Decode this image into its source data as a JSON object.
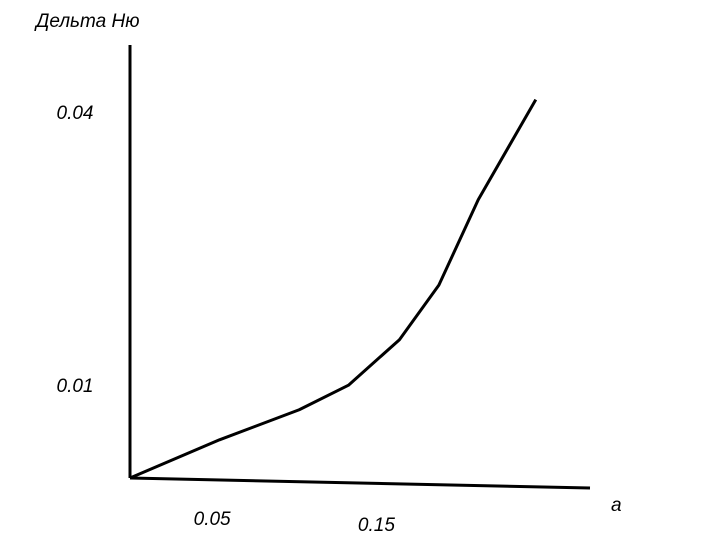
{
  "chart_data": {
    "type": "line",
    "y_label": "Дельта Ню",
    "x_label": "a",
    "x": [
      0,
      0.0545,
      0.103,
      0.133,
      0.164,
      0.188,
      0.212,
      0.247
    ],
    "series": [
      {
        "color": "#000000",
        "values": [
          0,
          0.0042,
          0.0075,
          0.0102,
          0.0152,
          0.0212,
          0.0306,
          0.0416
        ]
      }
    ],
    "xlim": [
      0,
      0.28
    ],
    "ylim": [
      0,
      0.0476
    ],
    "xticks": [
      0.05,
      0.15
    ],
    "yticks": [
      0.01,
      0.04
    ],
    "grid": false
  }
}
